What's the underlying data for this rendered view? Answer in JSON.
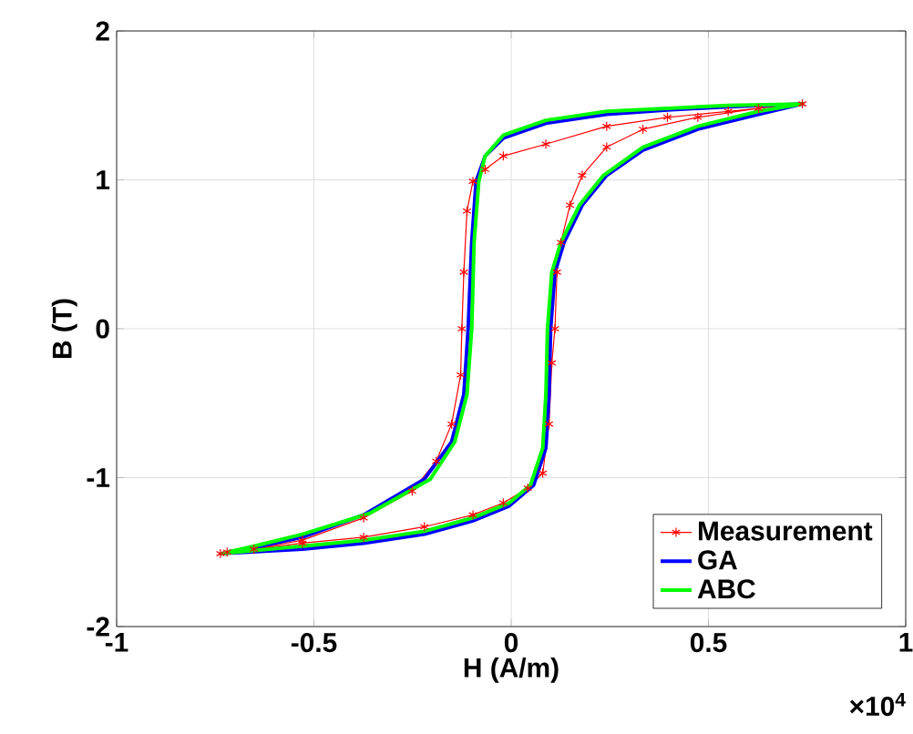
{
  "chart_data": {
    "type": "line",
    "xlabel": "H (A/m)",
    "ylabel": "B (T)",
    "xlim": [
      -1,
      1
    ],
    "ylim": [
      -2,
      2
    ],
    "xticks": [
      -1,
      -0.5,
      0,
      0.5,
      1
    ],
    "yticks": [
      -2,
      -1,
      0,
      1,
      2
    ],
    "grid": true,
    "legend": "bottom right",
    "annotations": [
      "×10$^{4}$"
    ],
    "series": [
      {
        "name": "Measurement",
        "color": "#ff0000",
        "marker": "cross",
        "line_style": "solid",
        "x": [
          -0.737,
          -0.529,
          -0.374,
          -0.22,
          -0.097,
          -0.02,
          0.042,
          0.08,
          0.096,
          0.103,
          0.111,
          0.116,
          0.126,
          0.149,
          0.18,
          0.242,
          0.334,
          0.473,
          0.627,
          0.738,
          0.55,
          0.396,
          0.242,
          0.088,
          -0.02,
          -0.066,
          -0.097,
          -0.112,
          -0.12,
          -0.125,
          -0.128,
          -0.151,
          -0.19,
          -0.251,
          -0.374,
          -0.529,
          -0.652,
          -0.72
        ],
        "values": [
          -1.51,
          -1.44,
          -1.4,
          -1.33,
          -1.25,
          -1.17,
          -1.07,
          -0.97,
          -0.64,
          -0.23,
          0,
          0.38,
          0.58,
          0.83,
          1.03,
          1.22,
          1.34,
          1.42,
          1.48,
          1.51,
          1.46,
          1.42,
          1.36,
          1.24,
          1.16,
          1.07,
          0.99,
          0.79,
          0.38,
          0,
          -0.31,
          -0.64,
          -0.89,
          -1.09,
          -1.27,
          -1.42,
          -1.48,
          -1.5
        ]
      },
      {
        "name": "GA",
        "color": "#0000ff",
        "marker": "none",
        "line_style": "solid",
        "x": [
          -0.737,
          -0.529,
          -0.374,
          -0.22,
          -0.097,
          -0.005,
          0.057,
          0.088,
          0.096,
          0.1,
          0.111,
          0.134,
          0.18,
          0.242,
          0.334,
          0.473,
          0.627,
          0.738,
          0.55,
          0.396,
          0.242,
          0.088,
          -0.02,
          -0.066,
          -0.089,
          -0.1,
          -0.109,
          -0.12,
          -0.151,
          -0.22,
          -0.374,
          -0.529,
          -0.652,
          -0.72
        ],
        "values": [
          -1.51,
          -1.48,
          -1.44,
          -1.38,
          -1.29,
          -1.19,
          -1.05,
          -0.8,
          -0.44,
          0,
          0.38,
          0.58,
          0.83,
          1.03,
          1.2,
          1.34,
          1.44,
          1.51,
          1.49,
          1.47,
          1.44,
          1.38,
          1.28,
          1.16,
          0.99,
          0.58,
          0,
          -0.44,
          -0.76,
          -1.01,
          -1.25,
          -1.4,
          -1.47,
          -1.5
        ]
      },
      {
        "name": "ABC",
        "color": "#00ff00",
        "marker": "none",
        "line_style": "solid",
        "x": [
          -0.737,
          -0.529,
          -0.374,
          -0.22,
          -0.097,
          -0.005,
          0.049,
          0.08,
          0.088,
          0.092,
          0.103,
          0.126,
          0.173,
          0.234,
          0.334,
          0.473,
          0.627,
          0.738,
          0.55,
          0.396,
          0.242,
          0.088,
          -0.02,
          -0.066,
          -0.082,
          -0.094,
          -0.1,
          -0.112,
          -0.143,
          -0.205,
          -0.359,
          -0.529,
          -0.652,
          -0.72
        ],
        "values": [
          -1.51,
          -1.46,
          -1.42,
          -1.36,
          -1.27,
          -1.17,
          -1.05,
          -0.8,
          -0.44,
          0,
          0.38,
          0.58,
          0.83,
          1.03,
          1.22,
          1.36,
          1.46,
          1.51,
          1.5,
          1.48,
          1.46,
          1.4,
          1.3,
          1.16,
          0.99,
          0.58,
          0,
          -0.44,
          -0.76,
          -1.01,
          -1.24,
          -1.38,
          -1.46,
          -1.5
        ]
      }
    ]
  }
}
